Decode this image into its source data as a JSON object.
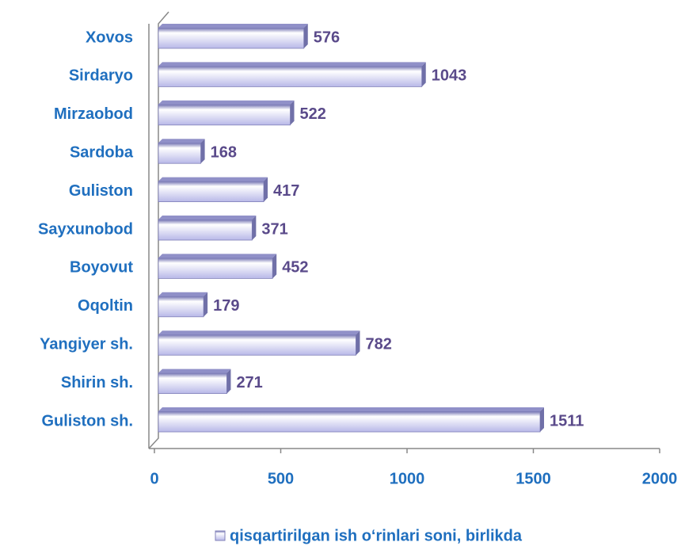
{
  "chart_data": {
    "type": "bar",
    "orientation": "horizontal",
    "categories": [
      "Xovos",
      "Sirdaryo",
      "Mirzaobod",
      "Sardoba",
      "Guliston",
      "Sayxunobod",
      "Boyovut",
      "Oqoltin",
      "Yangiyer sh.",
      "Shirin sh.",
      "Guliston sh."
    ],
    "series": [
      {
        "name": "qisqartirilgan ish o‘rinlari soni, birlikda",
        "color": "#c8c8f0",
        "values": [
          576,
          1043,
          522,
          168,
          417,
          371,
          452,
          179,
          782,
          271,
          1511
        ]
      }
    ],
    "xlim": [
      0,
      2000
    ],
    "xticks": [
      0,
      500,
      1000,
      1500,
      2000
    ],
    "legend": "bottom"
  }
}
